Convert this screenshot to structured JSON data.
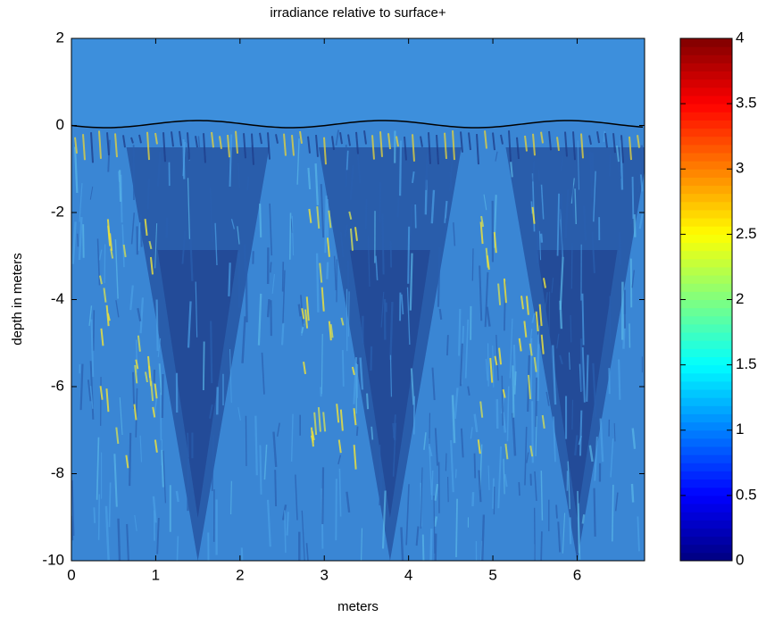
{
  "chart_data": {
    "type": "heatmap",
    "title": "irradiance relative to surface+",
    "xlabel": "meters",
    "ylabel": "depth in meters",
    "xlim": [
      0,
      6.8
    ],
    "xticks": [
      0,
      1,
      2,
      3,
      4,
      5,
      6
    ],
    "ylim": [
      -10,
      2
    ],
    "yticks": [
      -10,
      -8,
      -6,
      -4,
      -2,
      0,
      2
    ],
    "colorbar": {
      "lim": [
        0,
        4
      ],
      "ticks": [
        0,
        0.5,
        1,
        1.5,
        2,
        2.5,
        3,
        3.5,
        4
      ],
      "colormap": "jet"
    }
  }
}
